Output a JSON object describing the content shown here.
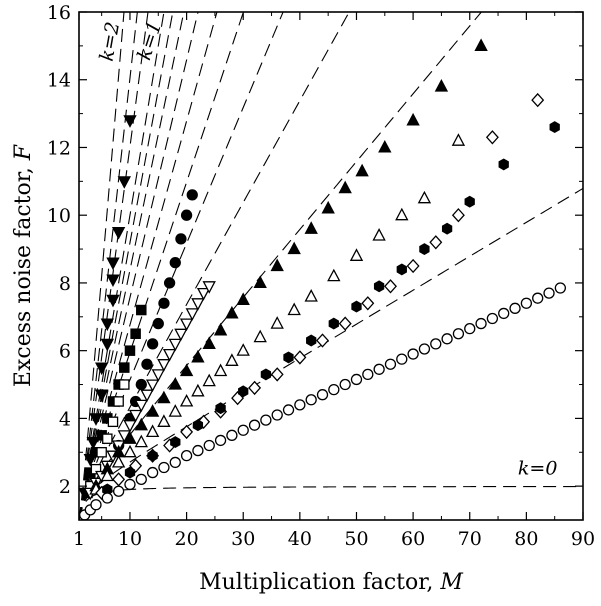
{
  "chart_data": {
    "type": "scatter",
    "title": "",
    "xlabel": "Multiplication factor, ",
    "xlabel_var": "M",
    "ylabel": "Excess noise factor, ",
    "ylabel_var": "F",
    "xlim": [
      1,
      90
    ],
    "ylim": [
      1,
      16
    ],
    "x_ticks": [
      1,
      10,
      20,
      30,
      40,
      50,
      60,
      70,
      80,
      90
    ],
    "y_ticks": [
      2,
      4,
      6,
      8,
      10,
      12,
      14,
      16
    ],
    "grid": false,
    "reference_lines": {
      "formula": "F = kM + (1-k)(2 - 1/M)",
      "style": "dashed",
      "k_values": [
        0,
        0.1,
        0.2,
        0.3,
        0.4,
        0.5,
        0.6,
        0.7,
        0.8,
        0.9,
        1.0,
        1.25,
        1.5,
        2.0
      ]
    },
    "annotations": [
      {
        "text": "k=2",
        "x": 7.5,
        "y": 15.1,
        "rotate": -80
      },
      {
        "text": "k=1",
        "x": 14.5,
        "y": 15.1,
        "rotate": -72
      },
      {
        "text": "k=0",
        "x": 82,
        "y": 2.35,
        "rotate": 0
      }
    ],
    "series": [
      {
        "marker": "triangle-down-filled",
        "x": [
          2,
          3,
          3.5,
          4,
          5,
          5,
          6,
          6,
          7,
          7,
          7,
          8,
          9,
          10
        ],
        "y": [
          1.8,
          2.8,
          3.3,
          4,
          4.7,
          5.5,
          6.2,
          6.8,
          7.5,
          8.1,
          8.6,
          9.5,
          11,
          12.8
        ]
      },
      {
        "marker": "square-filled",
        "x": [
          2.5,
          3,
          4,
          5,
          6,
          7,
          8,
          9,
          10,
          11,
          12
        ],
        "y": [
          1.8,
          2.4,
          3,
          3.5,
          4,
          4.5,
          5,
          5.5,
          6,
          6.5,
          7.2
        ]
      },
      {
        "marker": "square-open",
        "x": [
          3,
          4,
          5,
          6,
          7,
          8,
          9
        ],
        "y": [
          2,
          2.5,
          3,
          3.4,
          3.9,
          4.5,
          5
        ]
      },
      {
        "marker": "circle-filled",
        "x": [
          8,
          10,
          11,
          12,
          13,
          14,
          15,
          16,
          17,
          18,
          19,
          20,
          21
        ],
        "y": [
          3.2,
          4,
          4.5,
          5,
          5.6,
          6.2,
          6.8,
          7.4,
          8,
          8.6,
          9.3,
          10,
          10.6
        ]
      },
      {
        "marker": "triangle-down-open",
        "x": [
          3,
          4,
          5,
          6,
          7,
          8,
          9,
          10,
          11,
          12,
          13,
          14,
          15,
          16,
          17,
          18,
          19,
          20,
          21,
          22,
          23,
          24
        ],
        "y": [
          1.8,
          2.1,
          2.3,
          2.6,
          2.9,
          3.2,
          3.5,
          3.8,
          4.1,
          4.4,
          4.7,
          5,
          5.3,
          5.6,
          5.9,
          6.2,
          6.5,
          6.8,
          7.1,
          7.4,
          7.7,
          7.9
        ]
      },
      {
        "marker": "triangle-up-filled",
        "x": [
          4,
          6,
          8,
          10,
          12,
          14,
          16,
          18,
          20,
          22,
          24,
          26,
          28,
          30,
          33,
          36,
          39,
          42,
          45,
          48,
          51,
          55,
          60,
          65,
          72
        ],
        "y": [
          2,
          2.5,
          3,
          3.4,
          3.8,
          4.2,
          4.6,
          5,
          5.4,
          5.8,
          6.2,
          6.6,
          7.1,
          7.5,
          8,
          8.5,
          9,
          9.6,
          10.2,
          10.8,
          11.3,
          12,
          12.8,
          13.8,
          15
        ]
      },
      {
        "marker": "triangle-up-open",
        "x": [
          4,
          6,
          8,
          10,
          12,
          14,
          16,
          18,
          20,
          22,
          24,
          26,
          28,
          30,
          33,
          36,
          39,
          42,
          46,
          50,
          54,
          58,
          62,
          68
        ],
        "y": [
          1.9,
          2.3,
          2.7,
          3,
          3.3,
          3.6,
          3.9,
          4.2,
          4.5,
          4.8,
          5.1,
          5.4,
          5.7,
          6,
          6.4,
          6.8,
          7.2,
          7.6,
          8.2,
          8.8,
          9.4,
          10,
          10.5,
          12.2
        ]
      },
      {
        "marker": "diamond-open",
        "x": [
          5,
          8,
          11,
          14,
          17,
          20,
          23,
          26,
          29,
          32,
          36,
          40,
          44,
          48,
          52,
          56,
          60,
          64,
          68,
          74,
          82
        ],
        "y": [
          1.8,
          2.2,
          2.6,
          2.9,
          3.2,
          3.6,
          3.9,
          4.2,
          4.6,
          4.9,
          5.3,
          5.8,
          6.3,
          6.8,
          7.4,
          7.9,
          8.5,
          9.2,
          10,
          12.3,
          13.4
        ]
      },
      {
        "marker": "hexagon-filled",
        "x": [
          6,
          10,
          14,
          18,
          22,
          26,
          30,
          34,
          38,
          42,
          46,
          50,
          54,
          58,
          62,
          66,
          70,
          76,
          85
        ],
        "y": [
          1.9,
          2.4,
          2.9,
          3.3,
          3.8,
          4.3,
          4.8,
          5.3,
          5.8,
          6.3,
          6.8,
          7.3,
          7.9,
          8.4,
          9,
          9.6,
          10.4,
          11.5,
          12.6
        ]
      },
      {
        "marker": "circle-open",
        "x": [
          2,
          3,
          4,
          6,
          8,
          10,
          12,
          14,
          16,
          18,
          20,
          22,
          24,
          26,
          28,
          30,
          32,
          34,
          36,
          38,
          40,
          42,
          44,
          46,
          48,
          50,
          52,
          54,
          56,
          58,
          60,
          62,
          64,
          66,
          68,
          70,
          72,
          74,
          76,
          78,
          80,
          82,
          84,
          86
        ],
        "y": [
          1.15,
          1.3,
          1.45,
          1.65,
          1.85,
          2.05,
          2.2,
          2.4,
          2.55,
          2.7,
          2.9,
          3.05,
          3.2,
          3.35,
          3.5,
          3.65,
          3.8,
          3.95,
          4.1,
          4.25,
          4.4,
          4.55,
          4.7,
          4.85,
          5,
          5.15,
          5.3,
          5.45,
          5.6,
          5.75,
          5.9,
          6.05,
          6.2,
          6.35,
          6.5,
          6.65,
          6.8,
          6.95,
          7.1,
          7.25,
          7.4,
          7.55,
          7.7,
          7.85
        ]
      }
    ]
  }
}
